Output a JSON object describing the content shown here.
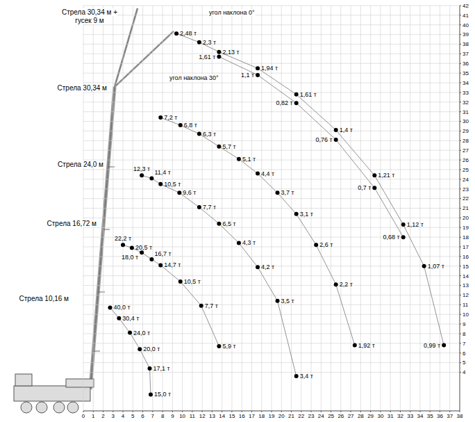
{
  "chart_data": {
    "type": "scatter",
    "xlim": [
      0,
      38
    ],
    "xticks": [
      0,
      1,
      2,
      3,
      4,
      5,
      6,
      7,
      8,
      9,
      10,
      11,
      12,
      13,
      14,
      15,
      16,
      17,
      18,
      19,
      20,
      21,
      22,
      23,
      24,
      25,
      26,
      27,
      28,
      29,
      30,
      31,
      32,
      33,
      34,
      35,
      36,
      37,
      38
    ],
    "ylim": [
      0,
      42
    ],
    "yticks": [
      4,
      5,
      6,
      7,
      8,
      9,
      10,
      11,
      12,
      13,
      14,
      15,
      16,
      17,
      18,
      19,
      20,
      21,
      22,
      23,
      24,
      25,
      26,
      27,
      28,
      29,
      30,
      31,
      32,
      33,
      34,
      35,
      36,
      37,
      38,
      39,
      40,
      41,
      42
    ],
    "grid": true,
    "data_labels": true,
    "marker": "circle",
    "line_style": "solid",
    "annotations": [
      "Стрела 30,34 м + гусек 9 м"
    ],
    "series": [
      {
        "name": "Стрела 10,16 м",
        "color": "#000000",
        "x": [
          2.7,
          3.6,
          4.7,
          5.7,
          6.7,
          6.8
        ],
        "y": [
          10.7,
          9.6,
          8.1,
          6.4,
          4.4,
          1.7
        ],
        "values": [
          40.0,
          30.4,
          24.0,
          20.0,
          17.1,
          15.0
        ],
        "value_labels": [
          "40,0 т",
          "30,4 т",
          "24,0 т",
          "20,0 т",
          "17,1 т",
          "15,0 т"
        ]
      },
      {
        "name": "Стрела 16,72 м",
        "color": "#000000",
        "x": [
          4.0,
          4.9,
          5.9,
          6.9,
          7.8,
          9.8,
          11.9,
          13.7
        ],
        "y": [
          17.2,
          16.9,
          16.4,
          15.7,
          15.1,
          13.4,
          10.9,
          6.7
        ],
        "values": [
          22.2,
          20.5,
          18.0,
          16.7,
          14.7,
          10.5,
          7.7,
          5.9
        ],
        "value_labels": [
          "22,2 т",
          "20,5 т",
          "18,0 т",
          "16,7 т",
          "14,7 т",
          "10,5 т",
          "7,7 т",
          "5,9 т"
        ]
      },
      {
        "name": "Стрела 24,0 м",
        "color": "#000000",
        "x": [
          5.9,
          6.9,
          7.8,
          9.7,
          11.7,
          13.7,
          15.7,
          17.6,
          19.6,
          21.5
        ],
        "y": [
          24.4,
          24.1,
          23.5,
          22.6,
          21.1,
          19.4,
          17.4,
          14.9,
          11.4,
          3.6
        ],
        "values": [
          12.3,
          11.4,
          10.5,
          9.6,
          7.7,
          6.5,
          4.3,
          4.2,
          3.5,
          3.4
        ],
        "value_labels": [
          "12,3 т",
          "11,4 т",
          "10,5 т",
          "9,6 т",
          "7,7 т",
          "6,5 т",
          "4,3 т",
          "4,2 т",
          "3,5 т",
          "3,4 т"
        ]
      },
      {
        "name": "Стрела 30,34 м",
        "color": "#000000",
        "x": [
          7.8,
          9.8,
          11.7,
          13.7,
          15.7,
          17.6,
          19.6,
          21.5,
          23.5,
          25.5,
          27.4
        ],
        "y": [
          30.4,
          29.6,
          28.7,
          27.4,
          26.1,
          24.6,
          22.6,
          20.4,
          17.2,
          13.1,
          6.8
        ],
        "values": [
          7.2,
          6.8,
          6.3,
          5.7,
          5.1,
          4.4,
          3.7,
          3.1,
          2.6,
          2.2,
          1.92
        ],
        "value_labels": [
          "7,2 т",
          "6,8 т",
          "6,3 т",
          "5,7 т",
          "5,1 т",
          "4,4 т",
          "3,7 т",
          "3,1 т",
          "2,6 т",
          "2,2 т",
          "1,92 т"
        ]
      },
      {
        "name": "угол наклона 0°",
        "color": "#000000",
        "x": [
          9.4,
          11.7,
          13.7,
          17.6,
          21.5,
          25.5,
          29.4,
          32.3,
          34.4,
          36.4
        ],
        "y": [
          39.1,
          38.2,
          37.2,
          35.5,
          32.8,
          29.1,
          24.4,
          19.3,
          15.0,
          6.8
        ],
        "values": [
          2.48,
          2.3,
          2.13,
          1.94,
          1.61,
          1.4,
          1.21,
          1.12,
          1.07,
          0.99
        ],
        "value_labels": [
          "2,48 т",
          "2,3 т",
          "2,13 т",
          "1,94 т",
          "1,61 т",
          "1,4 т",
          "1,21 т",
          "1,12 т",
          "1,07 т",
          "0,99 т"
        ]
      },
      {
        "name": "угол наклона 30°",
        "color": "#000000",
        "x": [
          13.7,
          17.6,
          21.5,
          25.5,
          29.4,
          32.3
        ],
        "y": [
          36.7,
          34.8,
          31.9,
          28.1,
          23.1,
          18.0
        ],
        "values": [
          1.61,
          1.1,
          0.82,
          0.76,
          0.7,
          0.68
        ],
        "value_labels": [
          "1,61 т",
          "1,1 т",
          "0,82 т",
          "0,76 т",
          "0,7 т",
          "0,68 т"
        ]
      }
    ]
  }
}
